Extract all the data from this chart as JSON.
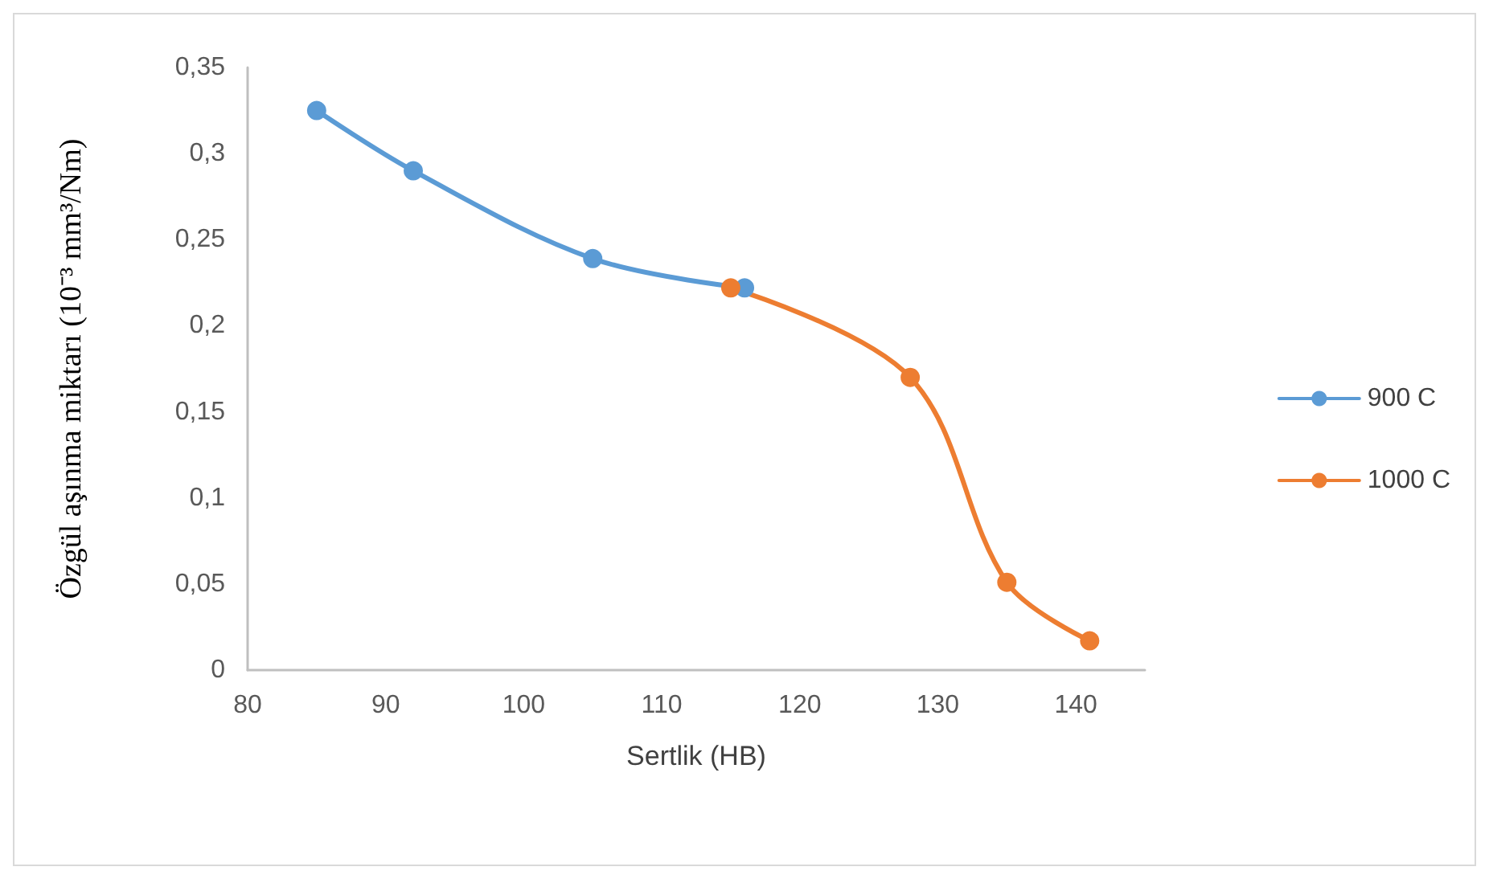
{
  "chart_data": {
    "type": "line",
    "xlabel": "Sertlik (HB)",
    "ylabel": "Özgül aşınma miktarı (10⁻³ mm³/Nm)",
    "series": [
      {
        "name": "900 C",
        "color": "#5b9bd5",
        "x": [
          85,
          92,
          105,
          116
        ],
        "values": [
          0.325,
          0.29,
          0.239,
          0.222
        ]
      },
      {
        "name": "1000 C",
        "color": "#ed7d31",
        "x": [
          115,
          128,
          135,
          141
        ],
        "values": [
          0.222,
          0.17,
          0.051,
          0.017
        ]
      }
    ],
    "xlim": [
      80,
      145
    ],
    "xticks": [
      80,
      90,
      100,
      110,
      120,
      130,
      140
    ],
    "ylim": [
      0,
      0.35
    ],
    "yticks": [
      {
        "value": 0,
        "label": "0"
      },
      {
        "value": 0.05,
        "label": "0,05"
      },
      {
        "value": 0.1,
        "label": "0,1"
      },
      {
        "value": 0.15,
        "label": "0,15"
      },
      {
        "value": 0.2,
        "label": "0,2"
      },
      {
        "value": 0.25,
        "label": "0,25"
      },
      {
        "value": 0.3,
        "label": "0,3"
      },
      {
        "value": 0.35,
        "label": "0,35"
      }
    ],
    "grid": false,
    "legend": "right",
    "marker": "circle",
    "line_style": "solid"
  }
}
